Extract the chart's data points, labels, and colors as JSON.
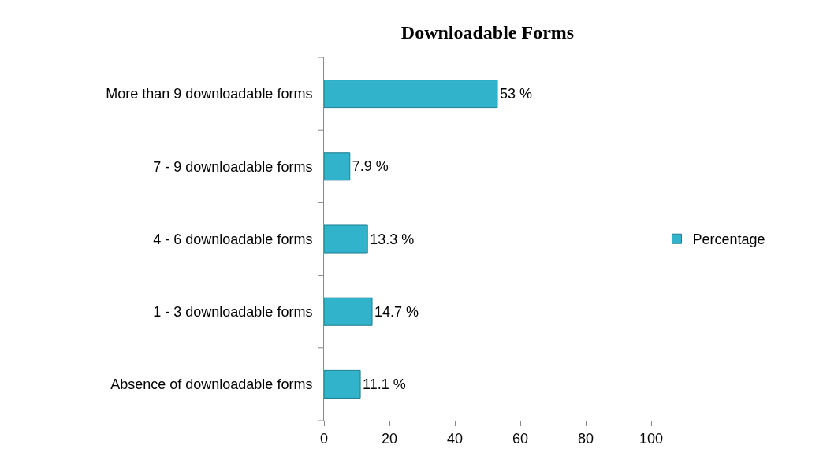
{
  "chart_data": {
    "type": "bar",
    "orientation": "horizontal",
    "title": "Downloadable Forms",
    "categories": [
      "More than 9 downloadable forms",
      "7 - 9 downloadable forms",
      "4 - 6 downloadable forms",
      "1 - 3 downloadable forms",
      "Absence of downloadable forms"
    ],
    "series": [
      {
        "name": "Percentage",
        "color": "#31b3cc",
        "values": [
          53,
          7.9,
          13.3,
          14.7,
          11.1
        ],
        "value_labels": [
          "53 %",
          "7.9 %",
          "13.3 %",
          "14.7 %",
          "11.1 %"
        ]
      }
    ],
    "xlim": [
      0,
      100
    ],
    "xticks": [
      0,
      20,
      40,
      60,
      80,
      100
    ],
    "grid": false,
    "legend": "right"
  }
}
